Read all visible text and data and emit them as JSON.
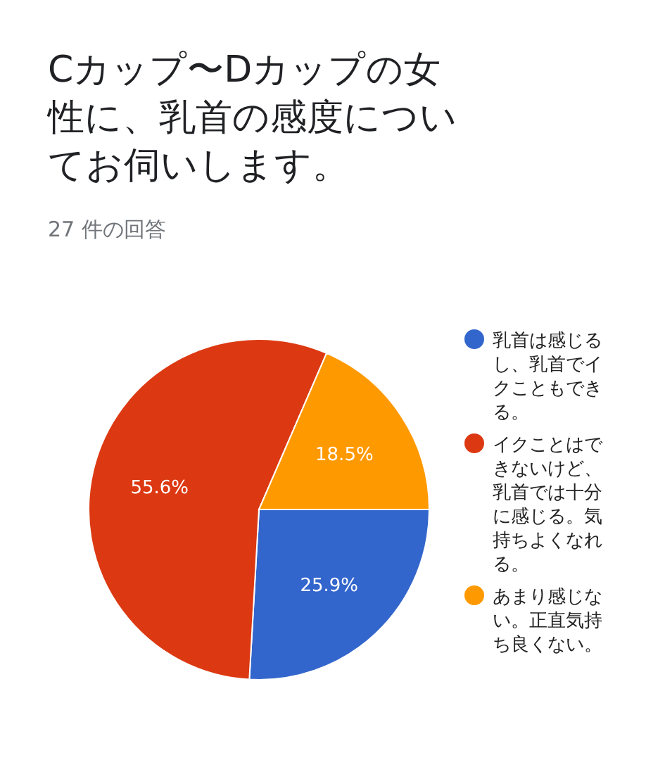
{
  "chart_data": {
    "type": "pie",
    "title": "Cカップ〜Dカップの女性に、乳首の感度についてお伺いします。",
    "subtitle": "27 件の回答",
    "categories": [
      "乳首は感じるし、乳首でイクこともできる。",
      "イクことはできないけど、乳首では十分に感じる。気持ちよくなれる。",
      "あまり感じない。正直気持ち良くない。"
    ],
    "values": [
      25.9,
      55.6,
      18.5
    ],
    "colors": [
      "#3366cc",
      "#dc3912",
      "#ff9900"
    ],
    "value_labels": [
      "25.9%",
      "55.6%",
      "18.5%"
    ],
    "legend": "right"
  }
}
